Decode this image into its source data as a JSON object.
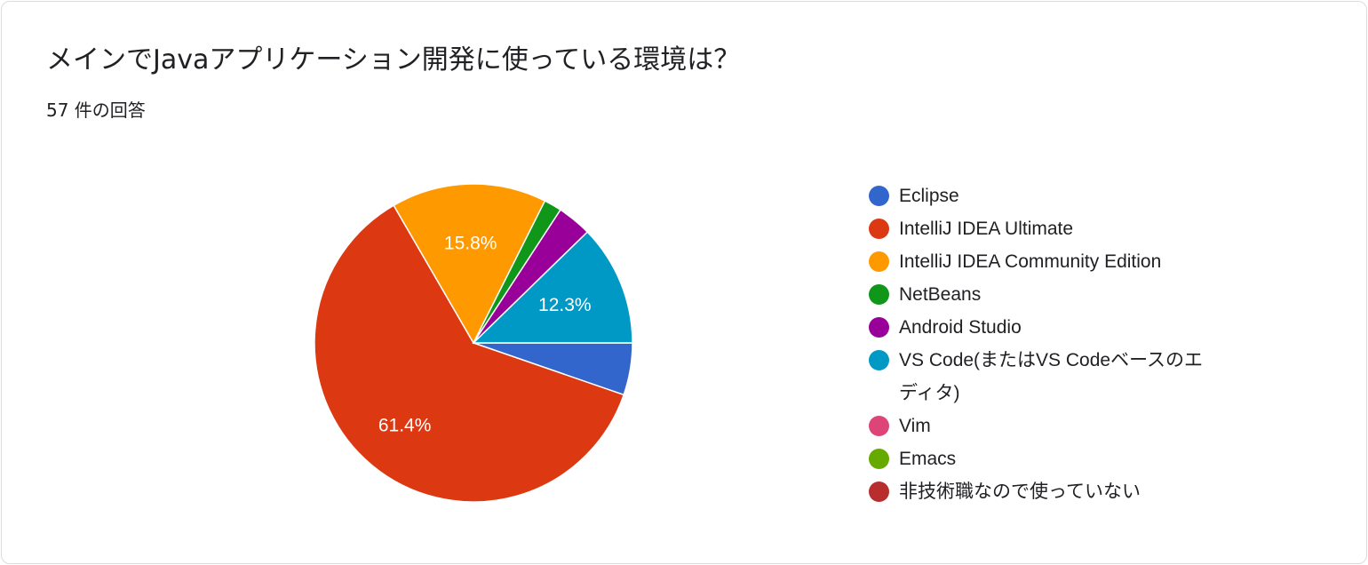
{
  "header": {
    "title": "メインでJavaアプリケーション開発に使っている環境は？",
    "responses": "57 件の回答"
  },
  "chart_data": {
    "type": "pie",
    "total_responses": 57,
    "legend_position": "right",
    "slices": [
      {
        "label": "Eclipse",
        "percent": 5.3,
        "color": "#3366cc",
        "data_label": ""
      },
      {
        "label": "IntelliJ IDEA Ultimate",
        "percent": 61.4,
        "color": "#dc3912",
        "data_label": "61.4%"
      },
      {
        "label": "IntelliJ IDEA Community Edition",
        "percent": 15.8,
        "color": "#ff9900",
        "data_label": "15.8%"
      },
      {
        "label": "NetBeans",
        "percent": 1.8,
        "color": "#109618",
        "data_label": ""
      },
      {
        "label": "Android Studio",
        "percent": 3.5,
        "color": "#990099",
        "data_label": ""
      },
      {
        "label": "VS Code(またはVS Codeベースのエディタ)",
        "percent": 12.3,
        "color": "#0099c6",
        "data_label": "12.3%"
      },
      {
        "label": "Vim",
        "percent": 0,
        "color": "#dd4477",
        "data_label": ""
      },
      {
        "label": "Emacs",
        "percent": 0,
        "color": "#66aa00",
        "data_label": ""
      },
      {
        "label": "非技術職なので使っていない",
        "percent": 0,
        "color": "#b82e2e",
        "data_label": ""
      }
    ]
  }
}
